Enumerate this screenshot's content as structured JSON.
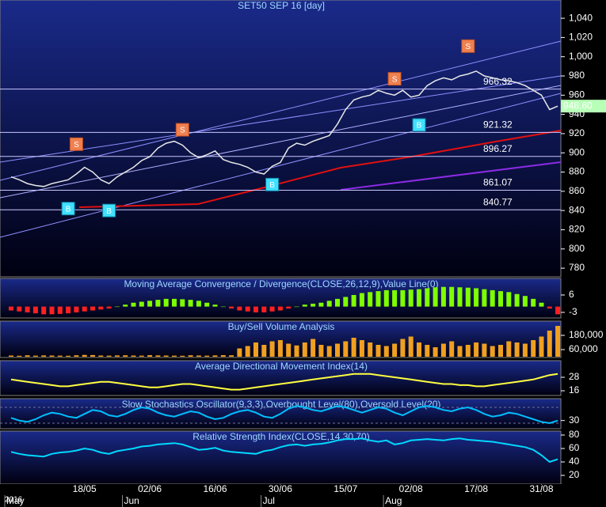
{
  "chart_data": [
    {
      "type": "line",
      "title": "SET50 SEP 16  [day]",
      "color": "#e8e8e8",
      "categories": [
        null,
        null,
        null,
        null,
        null,
        null,
        null,
        null,
        null,
        "18/05",
        null,
        null,
        null,
        null,
        null,
        null,
        null,
        "02/06",
        null,
        null,
        null,
        null,
        null,
        null,
        null,
        "16/06",
        null,
        null,
        null,
        null,
        null,
        null,
        null,
        "30/06",
        null,
        null,
        null,
        null,
        null,
        null,
        null,
        "15/07",
        null,
        null,
        null,
        null,
        null,
        null,
        null,
        "02/08",
        null,
        null,
        null,
        null,
        null,
        null,
        null,
        "17/08",
        null,
        null,
        null,
        null,
        null,
        null,
        null,
        "31/08",
        null,
        null
      ],
      "months": [
        {
          "value": 0,
          "label": "May"
        },
        {
          "value": 15,
          "label": "Jun"
        },
        {
          "value": 32,
          "label": "Jul"
        },
        {
          "value": 47,
          "label": "Aug"
        }
      ],
      "year": "2016",
      "values": [
        875,
        872,
        868,
        866,
        865,
        868,
        870,
        872,
        878,
        885,
        880,
        872,
        868,
        875,
        880,
        885,
        892,
        896,
        905,
        910,
        912,
        908,
        900,
        895,
        898,
        902,
        893,
        890,
        888,
        885,
        880,
        878,
        886,
        890,
        905,
        910,
        908,
        912,
        915,
        918,
        930,
        945,
        955,
        958,
        960,
        965,
        962,
        960,
        965,
        958,
        960,
        970,
        975,
        978,
        976,
        980,
        982,
        985,
        980,
        978,
        976,
        975,
        973,
        970,
        965,
        960,
        945,
        948.6
      ],
      "ylim": [
        771,
        1059
      ],
      "yticks": [
        780,
        800,
        820,
        840,
        860,
        880,
        900,
        920,
        940,
        960,
        980,
        {
          "value": 1000,
          "label": "1,000"
        },
        {
          "value": 1020,
          "label": "1,020"
        },
        {
          "value": 1040,
          "label": "1,040"
        }
      ],
      "levels": [
        966.32,
        921.32,
        896.27,
        861.07,
        840.77
      ],
      "last_price": {
        "value": 948.6,
        "label": "948.60"
      },
      "signals": [
        {
          "label": "S",
          "x": 8,
          "value": 909
        },
        {
          "label": "S",
          "x": 21,
          "value": 924
        },
        {
          "label": "S",
          "x": 47,
          "value": 977
        },
        {
          "label": "S",
          "x": 56,
          "value": 1011
        },
        {
          "label": "B",
          "x": 7,
          "value": 842
        },
        {
          "label": "B",
          "x": 12,
          "value": 840
        },
        {
          "label": "B",
          "x": 32,
          "value": 867
        },
        {
          "label": "B",
          "x": 50,
          "value": 929
        }
      ]
    },
    {
      "type": "bar",
      "title": "Moving Average Convergence / Divergence(CLOSE,26,12,9),Value Line(0)",
      "positive_color": "#7fff00",
      "negative_color": "#ff2020",
      "values": [
        -2,
        -2.5,
        -3,
        -3.5,
        -4,
        -4,
        -3.8,
        -3.5,
        -3,
        -2.5,
        -2,
        -1.5,
        -1,
        0,
        1,
        2,
        2.5,
        3,
        3.5,
        4,
        4,
        3.8,
        3.5,
        3,
        2,
        1,
        0,
        -1,
        -2,
        -2.5,
        -3,
        -3,
        -2.5,
        -2,
        -1,
        0,
        1,
        1.5,
        2,
        3,
        4,
        5,
        6,
        7,
        7.5,
        8,
        8.5,
        8.5,
        8.5,
        8.8,
        9,
        9.5,
        10,
        10.2,
        10.2,
        10,
        9.8,
        9.5,
        9,
        8.5,
        8,
        7.5,
        6.5,
        5.5,
        4,
        2,
        -1,
        -4
      ],
      "ylim": [
        -5.9,
        14.6
      ],
      "yticks": [
        -3,
        6
      ]
    },
    {
      "type": "bar",
      "title": "Buy/Sell Volume Analysis",
      "color": "#f0a020",
      "values": [
        10000,
        8000,
        12000,
        9000,
        11000,
        10000,
        9000,
        8000,
        12000,
        15000,
        14000,
        10000,
        9000,
        11000,
        12000,
        10000,
        9000,
        13000,
        11000,
        10000,
        9000,
        8000,
        12000,
        10000,
        9000,
        11000,
        13000,
        12000,
        70000,
        90000,
        120000,
        100000,
        130000,
        140000,
        110000,
        95000,
        120000,
        150000,
        100000,
        90000,
        110000,
        130000,
        160000,
        140000,
        120000,
        100000,
        90000,
        110000,
        150000,
        170000,
        120000,
        100000,
        80000,
        110000,
        130000,
        90000,
        100000,
        120000,
        110000,
        90000,
        100000,
        130000,
        120000,
        110000,
        140000,
        170000,
        220000,
        260000
      ],
      "ylim": [
        -6667,
        300000
      ],
      "yticks": [
        {
          "value": 60000,
          "label": "60,000"
        },
        {
          "value": 180000,
          "label": "180,000"
        }
      ]
    },
    {
      "type": "line",
      "title": "Average Directional Movement Index(14)",
      "color": "#ffff40",
      "values": [
        26,
        25,
        24,
        23,
        22,
        21,
        20,
        20,
        21,
        22,
        23,
        24,
        24,
        23,
        22,
        21,
        20,
        19,
        19,
        20,
        21,
        22,
        22,
        21,
        20,
        19,
        18,
        17,
        17,
        18,
        19,
        20,
        21,
        22,
        23,
        24,
        25,
        26,
        27,
        28,
        29,
        30,
        31,
        31,
        31,
        30,
        29,
        28,
        27,
        26,
        25,
        24,
        23,
        22,
        22,
        21,
        21,
        20,
        20,
        21,
        22,
        23,
        24,
        25,
        26,
        28,
        30,
        31
      ],
      "ylim": [
        11.8,
        42.8
      ],
      "yticks": [
        16,
        28
      ]
    },
    {
      "type": "line",
      "title": "Slow Stochastics Oscillator(9,3,3),Overbought Level(80),Oversold Level(20)",
      "color": "#00bfff",
      "values": [
        40,
        30,
        25,
        35,
        50,
        60,
        55,
        45,
        40,
        55,
        70,
        65,
        50,
        45,
        55,
        70,
        80,
        75,
        60,
        50,
        45,
        55,
        65,
        60,
        45,
        35,
        40,
        55,
        65,
        70,
        60,
        45,
        40,
        55,
        75,
        85,
        80,
        70,
        65,
        75,
        85,
        80,
        70,
        60,
        70,
        80,
        75,
        60,
        50,
        65,
        80,
        85,
        80,
        70,
        65,
        75,
        80,
        70,
        55,
        45,
        50,
        60,
        55,
        45,
        35,
        25,
        20,
        30
      ],
      "levels": [
        80,
        20
      ],
      "ylim": [
        -1,
        113
      ],
      "yticks": [
        30
      ]
    },
    {
      "type": "line",
      "title": "Relative Strength Index(CLOSE,14,30,70)",
      "color": "#00d8ff",
      "values": [
        55,
        52,
        50,
        49,
        48,
        52,
        54,
        55,
        57,
        60,
        58,
        54,
        52,
        56,
        58,
        60,
        63,
        64,
        66,
        67,
        68,
        66,
        62,
        58,
        59,
        61,
        57,
        55,
        54,
        53,
        52,
        56,
        58,
        62,
        65,
        66,
        64,
        66,
        67,
        69,
        72,
        74,
        74,
        75,
        72,
        70,
        72,
        66,
        68,
        72,
        73,
        74,
        73,
        72,
        74,
        75,
        73,
        72,
        71,
        70,
        68,
        66,
        64,
        62,
        58,
        50,
        40,
        44
      ],
      "ylim": [
        7.1,
        85.9
      ],
      "yticks": [
        20,
        40,
        60,
        80
      ]
    }
  ]
}
